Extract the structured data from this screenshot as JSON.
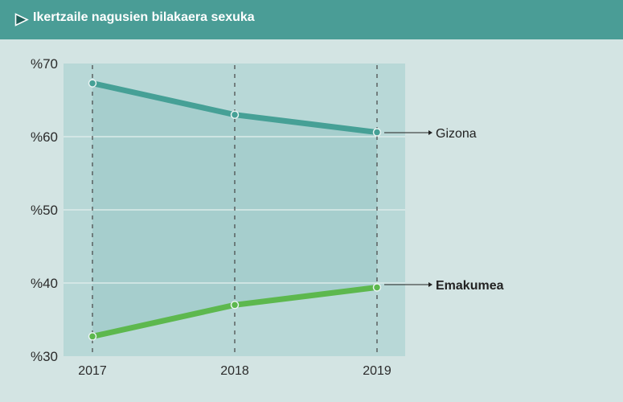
{
  "header": {
    "icon": "play-triangle-icon",
    "title": "Ikertzaile nagusien bilakaera sexuka"
  },
  "colors": {
    "header_bg": "#4a9d96",
    "page_bg": "#d3e4e3",
    "plot_bg": "#b8d8d7",
    "band_fill": "#a6cecd",
    "gizona": "#46a096",
    "emakumea": "#5db84e"
  },
  "y_ticks": [
    "%70",
    "%60",
    "%50",
    "%40",
    "%30"
  ],
  "x_ticks": [
    "2017",
    "2018",
    "2019"
  ],
  "labels": {
    "gizona": "Gizona",
    "emakumea": "Emakumea"
  },
  "chart_data": {
    "type": "line",
    "title": "Ikertzaile nagusien bilakaera sexuka",
    "xlabel": "",
    "ylabel": "",
    "categories": [
      "2017",
      "2018",
      "2019"
    ],
    "series": [
      {
        "name": "Gizona",
        "values": [
          67.3,
          63.0,
          60.6
        ],
        "color": "#46a096"
      },
      {
        "name": "Emakumea",
        "values": [
          32.7,
          37.0,
          39.4
        ],
        "color": "#5db84e"
      }
    ],
    "ylim": [
      30,
      70
    ],
    "y_ticks": [
      30,
      40,
      50,
      60,
      70
    ],
    "y_tick_format": "%{value}",
    "grid": "horizontal at 40, 50, 60; vertical dashed at each year",
    "legend": "direct labels at right with arrows",
    "fill_between_series": true
  }
}
